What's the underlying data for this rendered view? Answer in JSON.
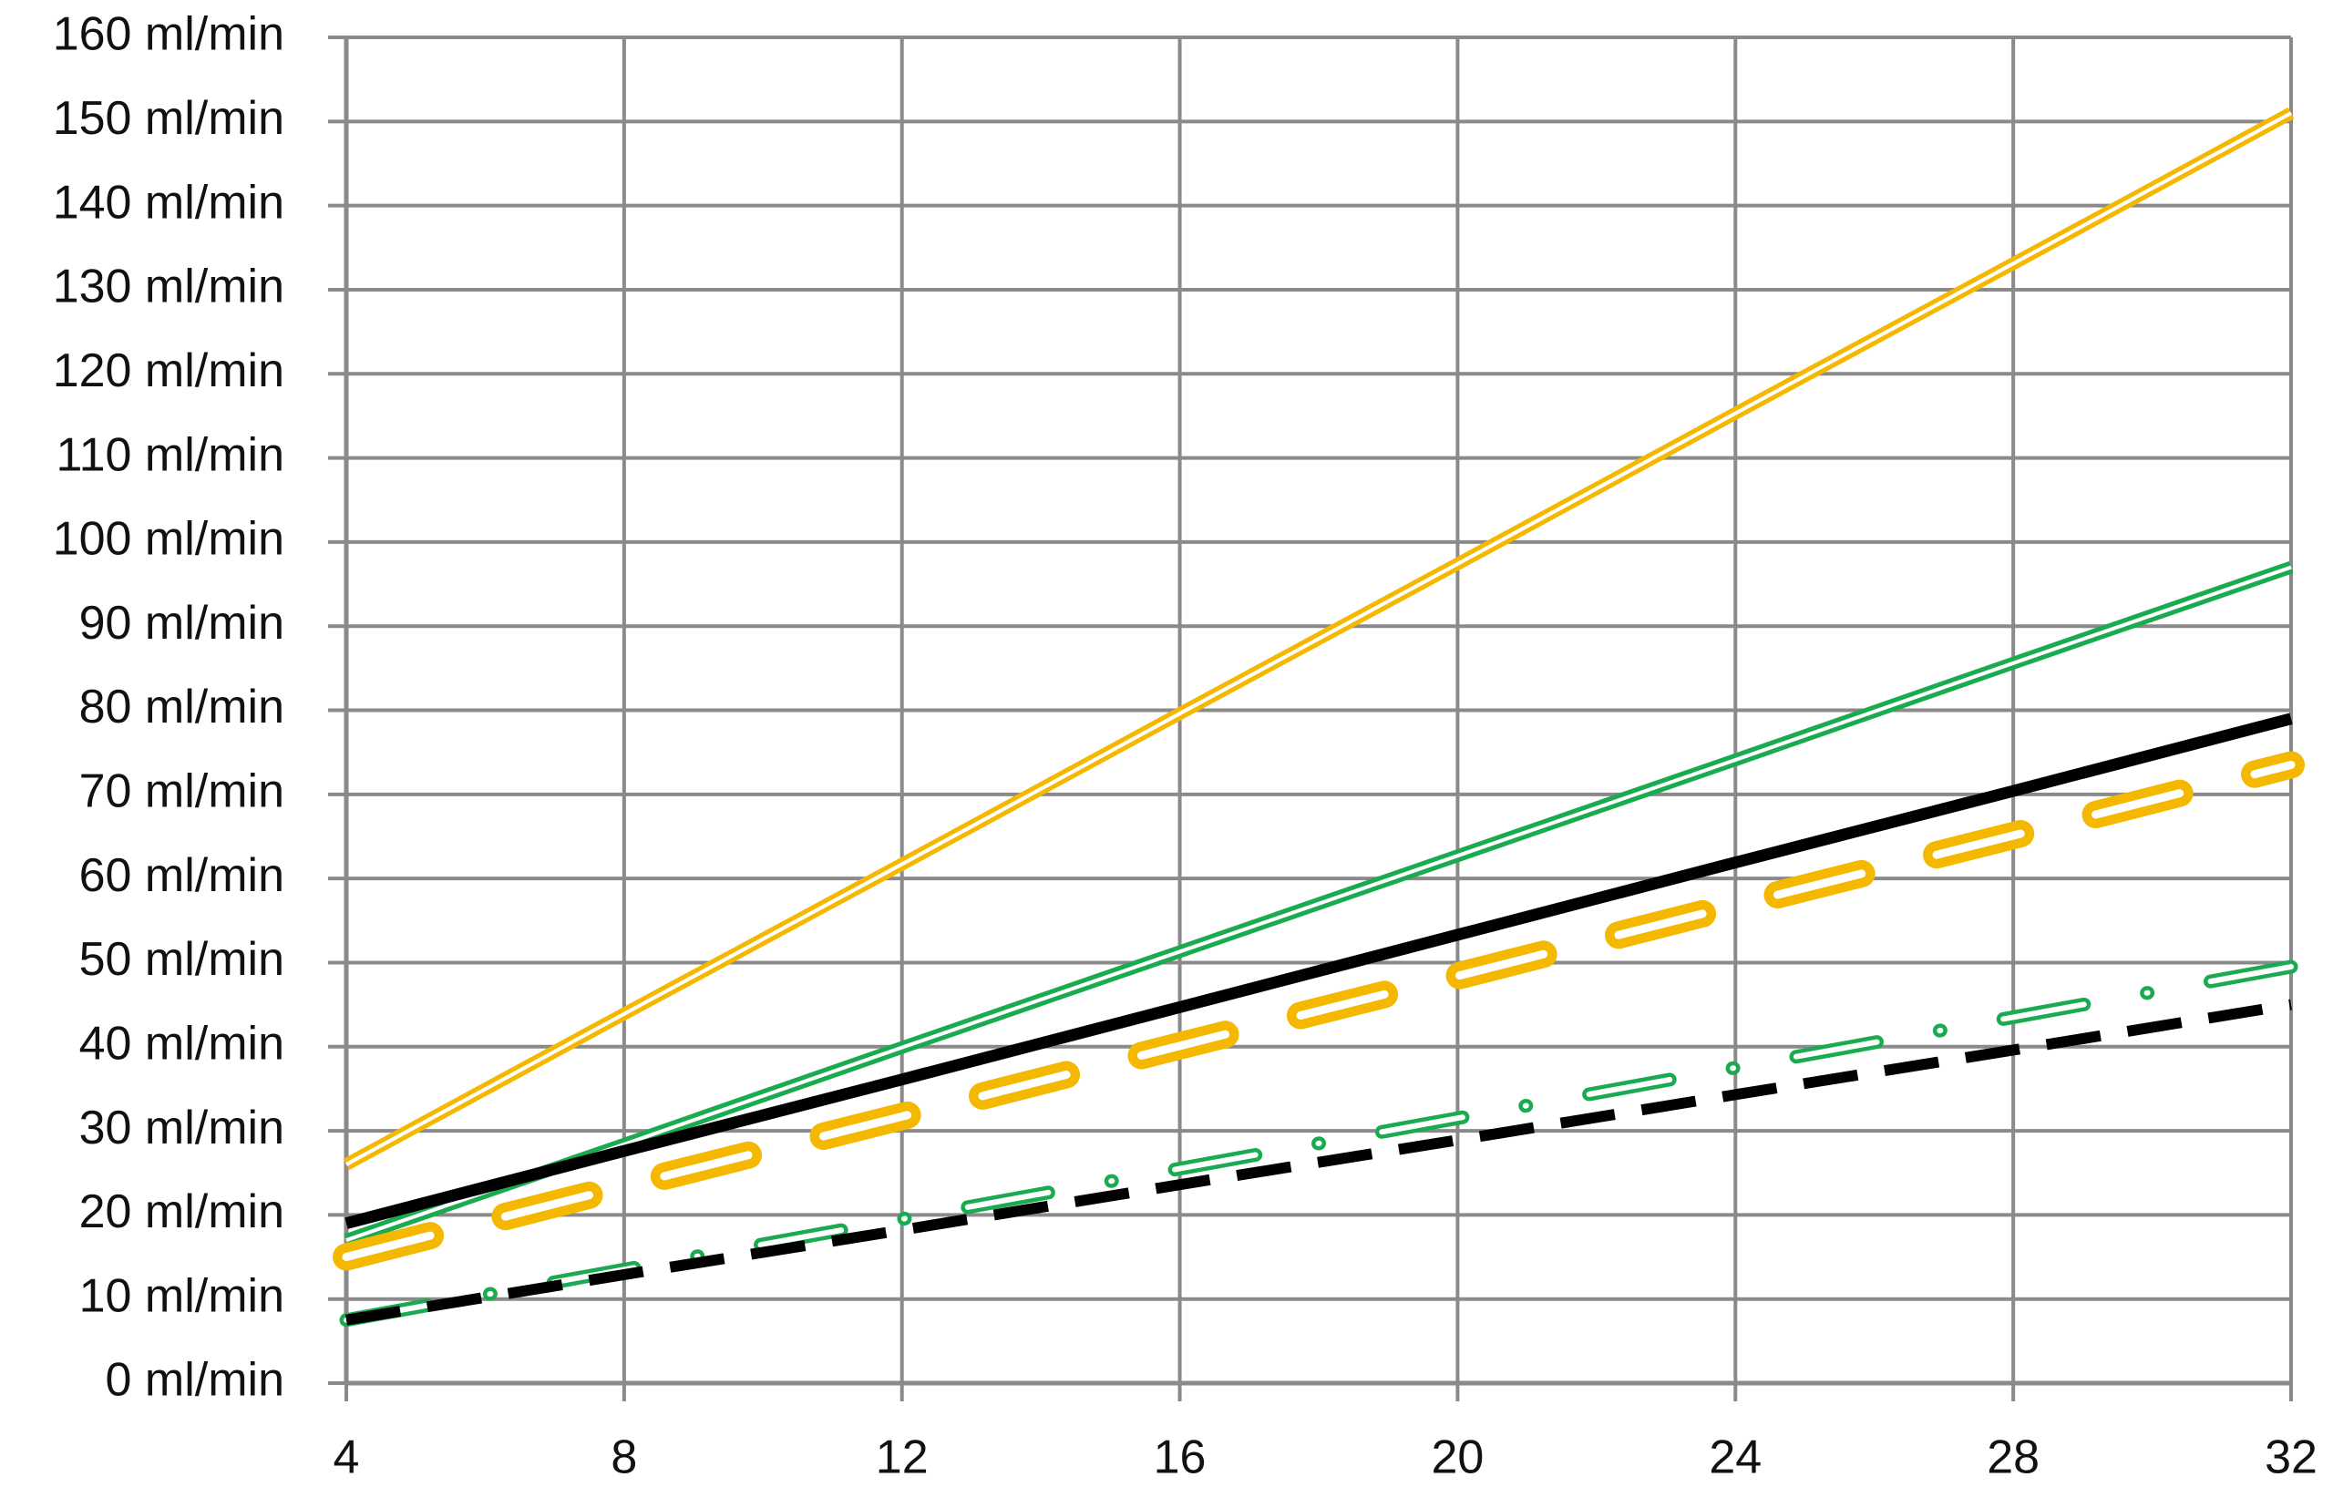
{
  "chart_data": {
    "type": "line",
    "x": [
      4,
      8,
      12,
      16,
      20,
      24,
      28,
      32
    ],
    "xlim": [
      4,
      32
    ],
    "xticks": [
      4,
      8,
      12,
      16,
      20,
      24,
      28,
      32
    ],
    "ylim": [
      0,
      160
    ],
    "yticks": [
      {
        "value": 0,
        "label": "0 ml/min"
      },
      {
        "value": 10,
        "label": "10 ml/min"
      },
      {
        "value": 20,
        "label": "20 ml/min"
      },
      {
        "value": 30,
        "label": "30 ml/min"
      },
      {
        "value": 40,
        "label": "40 ml/min"
      },
      {
        "value": 50,
        "label": "50 ml/min"
      },
      {
        "value": 60,
        "label": "60 ml/min"
      },
      {
        "value": 70,
        "label": "70 ml/min"
      },
      {
        "value": 80,
        "label": "80 ml/min"
      },
      {
        "value": 90,
        "label": "90 ml/min"
      },
      {
        "value": 100,
        "label": "100 ml/min"
      },
      {
        "value": 110,
        "label": "110 ml/min"
      },
      {
        "value": 120,
        "label": "120 ml/min"
      },
      {
        "value": 130,
        "label": "130 ml/min"
      },
      {
        "value": 140,
        "label": "140 ml/min"
      },
      {
        "value": 150,
        "label": "150 ml/min"
      },
      {
        "value": 160,
        "label": "160 ml/min"
      }
    ],
    "grid": true,
    "series": [
      {
        "color": "#f5b800",
        "style": "double",
        "values": [
          26,
          43.9,
          61.7,
          79.6,
          97.4,
          115.3,
          133.1,
          151
        ]
      },
      {
        "color": "#1aaa50",
        "style": "double",
        "values": [
          17,
          28.4,
          39.9,
          51.3,
          62.7,
          74.1,
          85.6,
          97
        ]
      },
      {
        "color": "#000000",
        "style": "solid",
        "values": [
          19,
          27.6,
          36.1,
          44.7,
          53.3,
          61.9,
          70.4,
          79
        ]
      },
      {
        "color": "#f5b800",
        "style": "dashed-double",
        "values": [
          15,
          23.4,
          31.7,
          40.1,
          48.4,
          56.8,
          65.1,
          73.5
        ]
      },
      {
        "color": "#1aaa50",
        "style": "dashdot-double",
        "values": [
          7.5,
          13.5,
          19.5,
          25.5,
          31.5,
          37.5,
          43.5,
          49.5
        ]
      },
      {
        "color": "#000000",
        "style": "dashed",
        "values": [
          7.5,
          12.9,
          18.2,
          23.6,
          28.9,
          34.3,
          39.6,
          45
        ]
      }
    ]
  }
}
